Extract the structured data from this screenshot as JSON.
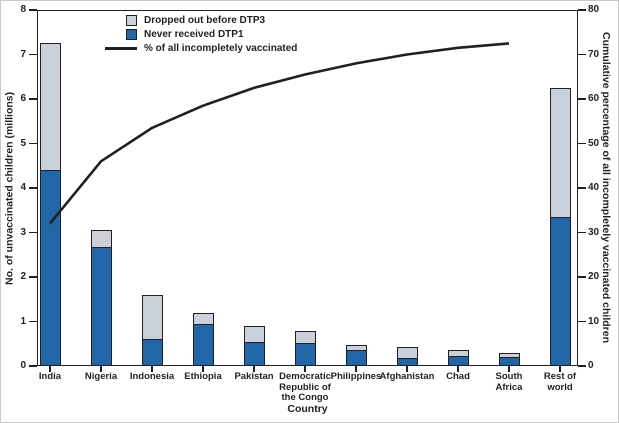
{
  "colors": {
    "bar_blue": "#1F67A8",
    "bar_gray": "#CBD1DB",
    "ink": "#231F20",
    "background": "#FFFFFF"
  },
  "chart_data": {
    "type": "bar",
    "subtype": "pareto-stacked-bars-with-cumulative-percentage-line",
    "categories": [
      "India",
      "Nigeria",
      "Indonesia",
      "Ethiopia",
      "Pakistan",
      "Democratic Republic of the Congo",
      "Philippines",
      "Afghanistan",
      "Chad",
      "South Africa",
      "Rest of world"
    ],
    "series": [
      {
        "name": "Never received DTP1",
        "role": "stack-bottom",
        "color": "#1F67A8",
        "values": [
          4.4,
          2.7,
          0.6,
          0.95,
          0.55,
          0.53,
          0.38,
          0.18,
          0.24,
          0.22,
          3.35
        ]
      },
      {
        "name": "Dropped out before DTP3",
        "role": "stack-top",
        "color": "#CBD1DB",
        "values": [
          2.85,
          0.35,
          1.0,
          0.25,
          0.35,
          0.25,
          0.1,
          0.25,
          0.11,
          0.08,
          2.9
        ]
      }
    ],
    "stack_totals": [
      7.25,
      3.05,
      1.6,
      1.2,
      0.9,
      0.78,
      0.48,
      0.43,
      0.35,
      0.3,
      6.25
    ],
    "line_series": {
      "name": "% of all incompletely vaccinated",
      "axis": "right",
      "color": "#231F20",
      "values": [
        32,
        46,
        53.5,
        58.5,
        62.5,
        65.5,
        68,
        70,
        71.5,
        72.5,
        null
      ]
    },
    "left_axis": {
      "label": "No. of unvaccinated children (millions)",
      "min": 0,
      "max": 8,
      "ticks": [
        0,
        1,
        2,
        3,
        4,
        5,
        6,
        7,
        8
      ]
    },
    "right_axis": {
      "label": "Cumulative percentage of all incompletely vaccinated children",
      "min": 0,
      "max": 80,
      "ticks": [
        0,
        10,
        20,
        30,
        40,
        50,
        60,
        70,
        80
      ]
    },
    "x_label": "Country",
    "tick_label_lines": [
      [
        "India"
      ],
      [
        "Nigeria"
      ],
      [
        "Indonesia"
      ],
      [
        "Ethiopia"
      ],
      [
        "Pakistan"
      ],
      [
        "Democratic",
        "Republic of",
        "the Congo"
      ],
      [
        "Philippines"
      ],
      [
        "Afghanistan"
      ],
      [
        "Chad"
      ],
      [
        "South",
        "Africa"
      ],
      [
        "Rest of",
        "world"
      ]
    ],
    "legend": [
      {
        "swatch": "gray-box",
        "label": "Dropped out before DTP3"
      },
      {
        "swatch": "blue-box",
        "label": "Never received DTP1"
      },
      {
        "swatch": "black-line",
        "label": "% of all incompletely vaccinated"
      }
    ],
    "grid": false,
    "legend_position": "top-left-inside"
  }
}
